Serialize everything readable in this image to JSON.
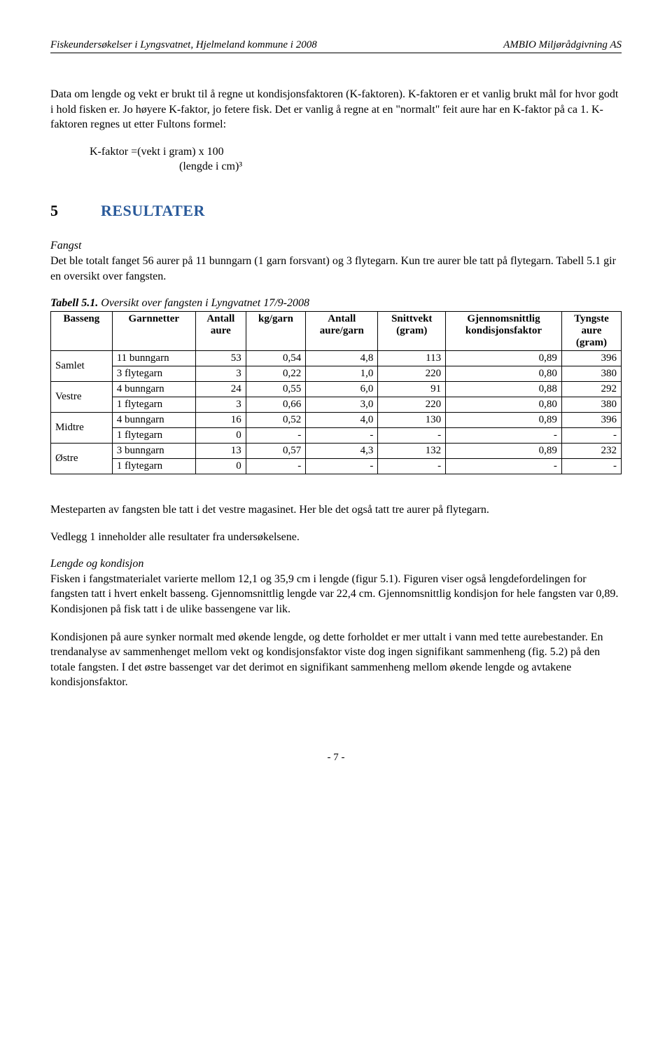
{
  "header": {
    "left": "Fiskeundersøkelser i Lyngsvatnet, Hjelmeland kommune i 2008",
    "right": "AMBIO Miljørådgivning AS"
  },
  "para1": "Data om lengde og vekt er brukt til å regne ut kondisjonsfaktoren (K-faktoren). K-faktoren er et vanlig brukt mål for hvor godt i hold fisken er. Jo høyere K-faktor, jo fetere fisk. Det er vanlig å regne at en \"normalt\" feit aure har en K-faktor på ca 1. K-faktoren regnes ut etter Fultons formel:",
  "formula": {
    "line1": "K-faktor =(vekt i gram) x 100",
    "line2": "(lengde i cm)³"
  },
  "section": {
    "number": "5",
    "title": "RESULTATER"
  },
  "fangst": {
    "heading": "Fangst",
    "text": "Det ble totalt fanget 56 aurer på 11 bunngarn (1 garn forsvant) og 3 flytegarn. Kun tre aurer ble tatt på flytegarn. Tabell 5.1 gir en oversikt over fangsten."
  },
  "table": {
    "caption_label": "Tabell 5.1.",
    "caption_desc": "Oversikt over fangsten i Lyngvatnet 17/9-2008",
    "columns": [
      "Basseng",
      "Garnnetter",
      "Antall aure",
      "kg/garn",
      "Antall aure/garn",
      "Snittvekt (gram)",
      "Gjennomsnittlig kondisjonsfaktor",
      "Tyngste aure (gram)"
    ],
    "col_align": [
      "left",
      "left",
      "right",
      "right",
      "right",
      "right",
      "right",
      "right"
    ],
    "groups": [
      {
        "label": "Samlet",
        "rows": [
          [
            "11 bunngarn",
            "53",
            "0,54",
            "4,8",
            "113",
            "0,89",
            "396"
          ],
          [
            "3 flytegarn",
            "3",
            "0,22",
            "1,0",
            "220",
            "0,80",
            "380"
          ]
        ]
      },
      {
        "label": "Vestre",
        "rows": [
          [
            "4 bunngarn",
            "24",
            "0,55",
            "6,0",
            "91",
            "0,88",
            "292"
          ],
          [
            "1 flytegarn",
            "3",
            "0,66",
            "3,0",
            "220",
            "0,80",
            "380"
          ]
        ]
      },
      {
        "label": "Midtre",
        "rows": [
          [
            "4 bunngarn",
            "16",
            "0,52",
            "4,0",
            "130",
            "0,89",
            "396"
          ],
          [
            "1 flytegarn",
            "0",
            "-",
            "-",
            "-",
            "-",
            "-"
          ]
        ]
      },
      {
        "label": "Østre",
        "rows": [
          [
            "3 bunngarn",
            "13",
            "0,57",
            "4,3",
            "132",
            "0,89",
            "232"
          ],
          [
            "1 flytegarn",
            "0",
            "-",
            "-",
            "-",
            "-",
            "-"
          ]
        ]
      }
    ]
  },
  "para2": "Mesteparten av fangsten ble tatt i det vestre magasinet. Her ble det også tatt tre aurer på flytegarn.",
  "para3": "Vedlegg 1 inneholder alle resultater fra undersøkelsene.",
  "lengde": {
    "heading": "Lengde og kondisjon",
    "text1": "Fisken i fangstmaterialet varierte mellom 12,1 og 35,9 cm i lengde (figur 5.1). Figuren viser også lengdefordelingen for fangsten tatt i hvert enkelt basseng. Gjennomsnittlig lengde var 22,4 cm. Gjennomsnittlig kondisjon for hele fangsten var 0,89. Kondisjonen på fisk tatt i de ulike bassengene var lik.",
    "text2": "Kondisjonen på aure synker normalt med økende lengde, og dette forholdet er mer uttalt i vann med tette aurebestander. En trendanalyse av sammenhenget mellom vekt og kondisjonsfaktor viste dog ingen signifikant sammenheng (fig. 5.2) på den totale fangsten. I det østre bassenget var det derimot en signifikant sammenheng mellom økende lengde og avtakene kondisjonsfaktor."
  },
  "footer": "- 7 -"
}
